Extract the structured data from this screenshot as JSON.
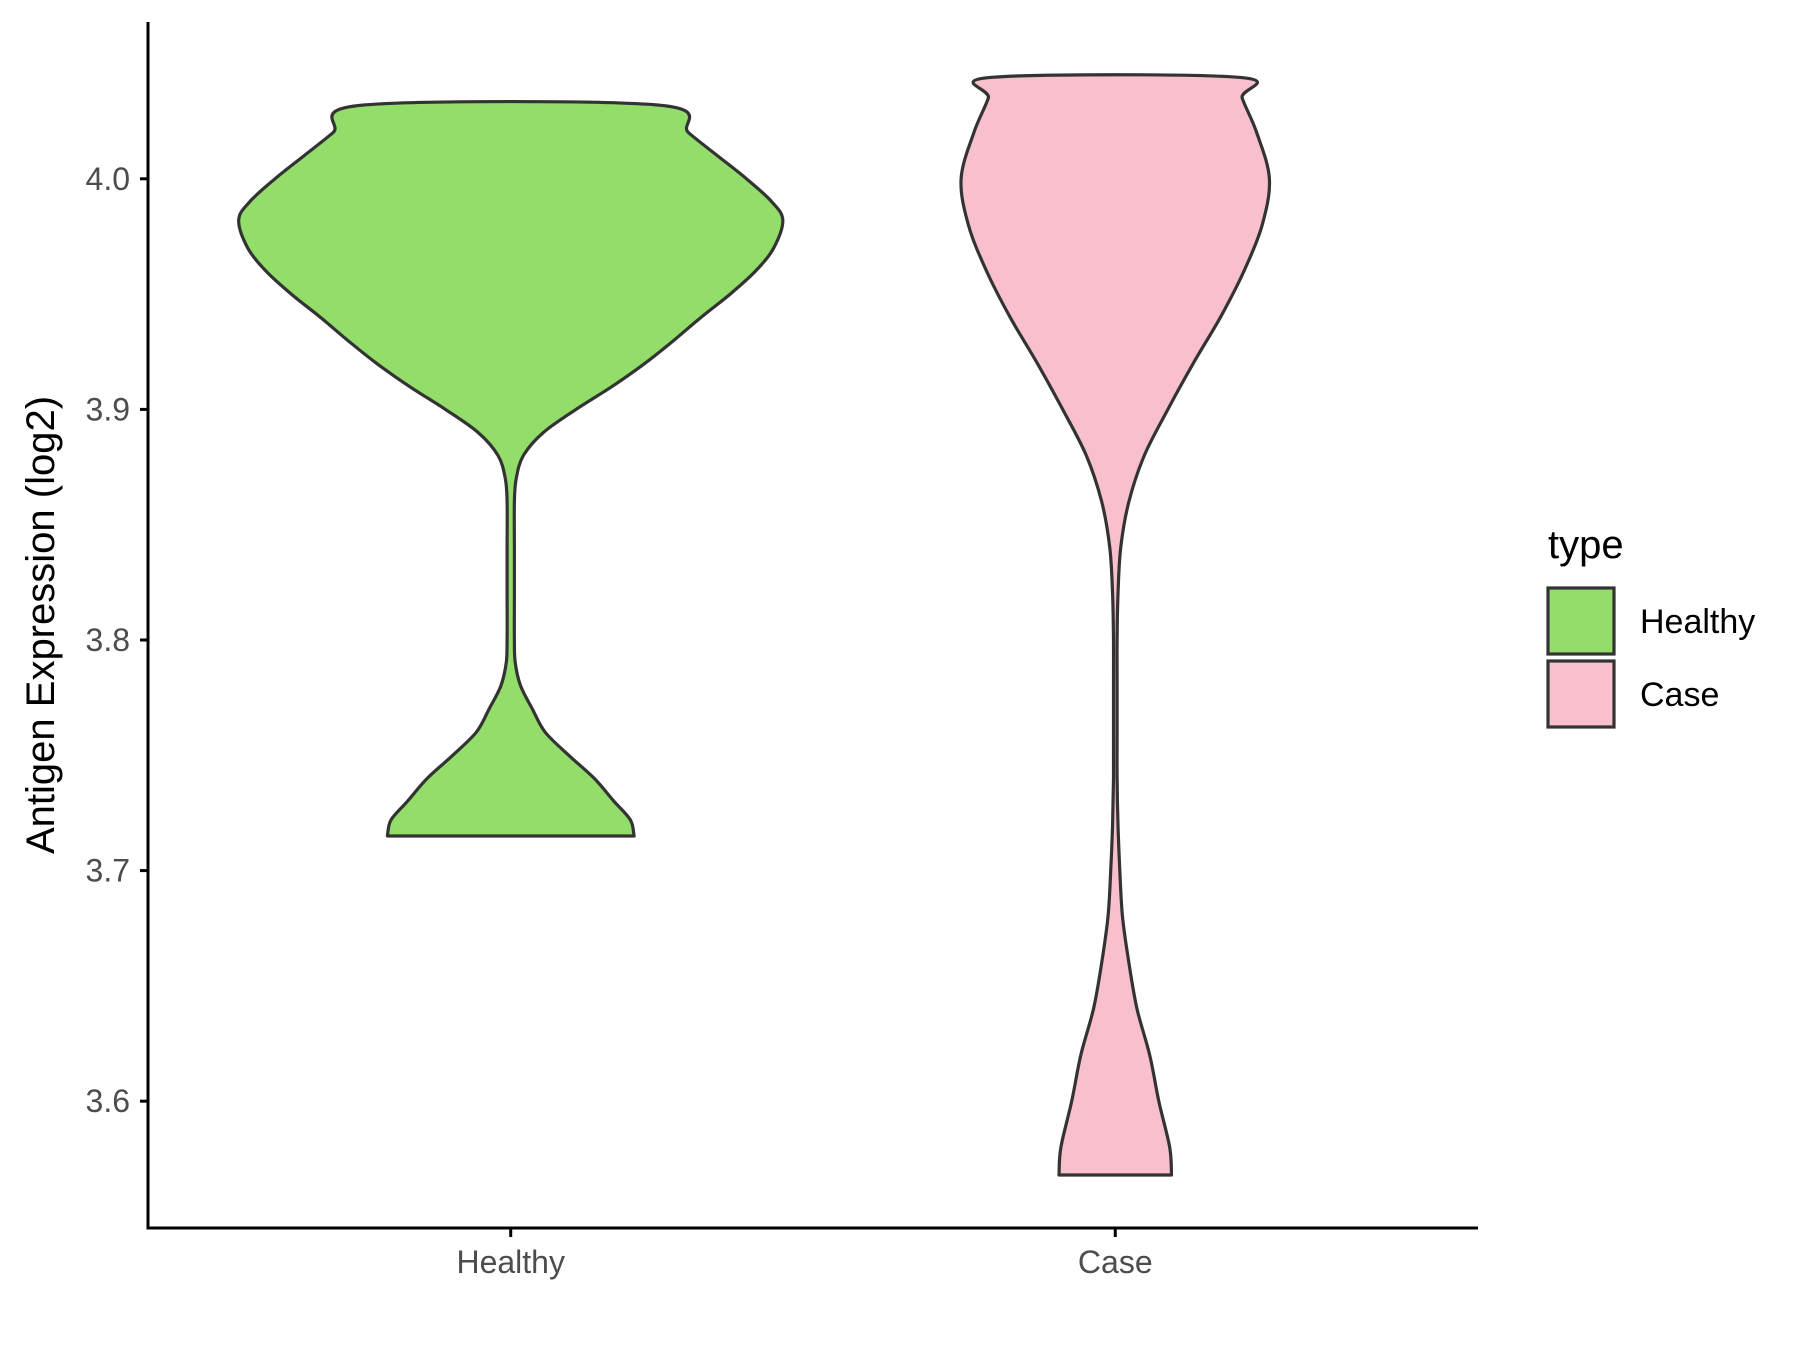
{
  "chart_data": {
    "type": "violin",
    "title": "",
    "xlabel": "",
    "ylabel": "Antigen Expression (log2)",
    "categories": [
      "Healthy",
      "Case"
    ],
    "ylim": [
      3.545,
      4.068
    ],
    "yticks": [
      3.6,
      3.7,
      3.8,
      3.9,
      4.0
    ],
    "ytick_labels": [
      "3.6",
      "3.7",
      "3.8",
      "3.9",
      "4.0"
    ],
    "grid": false,
    "legend": {
      "title": "type",
      "position": "right",
      "entries": [
        {
          "label": "Healthy",
          "color": "#93DD6A"
        },
        {
          "label": "Case",
          "color": "#F7C0CC"
        }
      ]
    },
    "series": [
      {
        "category": "Healthy",
        "color": "#93DD6A",
        "min": 3.715,
        "max": 4.032,
        "density_profile": [
          [
            3.715,
            0.68
          ],
          [
            3.722,
            0.66
          ],
          [
            3.73,
            0.57
          ],
          [
            3.74,
            0.46
          ],
          [
            3.75,
            0.32
          ],
          [
            3.76,
            0.19
          ],
          [
            3.77,
            0.12
          ],
          [
            3.78,
            0.055
          ],
          [
            3.79,
            0.025
          ],
          [
            3.8,
            0.02
          ],
          [
            3.82,
            0.02
          ],
          [
            3.84,
            0.02
          ],
          [
            3.86,
            0.02
          ],
          [
            3.87,
            0.03
          ],
          [
            3.88,
            0.07
          ],
          [
            3.89,
            0.18
          ],
          [
            3.9,
            0.36
          ],
          [
            3.91,
            0.56
          ],
          [
            3.92,
            0.74
          ],
          [
            3.93,
            0.9
          ],
          [
            3.94,
            1.05
          ],
          [
            3.95,
            1.21
          ],
          [
            3.96,
            1.35
          ],
          [
            3.97,
            1.45
          ],
          [
            3.982,
            1.5
          ],
          [
            3.99,
            1.44
          ],
          [
            4.0,
            1.3
          ],
          [
            4.01,
            1.14
          ],
          [
            4.02,
            0.98
          ],
          [
            4.032,
            0.81
          ]
        ]
      },
      {
        "category": "Case",
        "color": "#F7C0CC",
        "min": 3.568,
        "max": 4.044,
        "density_profile": [
          [
            3.568,
            0.31
          ],
          [
            3.58,
            0.3
          ],
          [
            3.6,
            0.24
          ],
          [
            3.62,
            0.19
          ],
          [
            3.64,
            0.12
          ],
          [
            3.66,
            0.075
          ],
          [
            3.68,
            0.04
          ],
          [
            3.7,
            0.025
          ],
          [
            3.72,
            0.015
          ],
          [
            3.74,
            0.01
          ],
          [
            3.76,
            0.01
          ],
          [
            3.78,
            0.01
          ],
          [
            3.8,
            0.01
          ],
          [
            3.82,
            0.015
          ],
          [
            3.84,
            0.03
          ],
          [
            3.86,
            0.075
          ],
          [
            3.88,
            0.16
          ],
          [
            3.9,
            0.29
          ],
          [
            3.92,
            0.43
          ],
          [
            3.94,
            0.58
          ],
          [
            3.96,
            0.71
          ],
          [
            3.98,
            0.81
          ],
          [
            4.0,
            0.85
          ],
          [
            4.02,
            0.78
          ],
          [
            4.035,
            0.7
          ],
          [
            4.044,
            0.68
          ]
        ]
      }
    ]
  }
}
